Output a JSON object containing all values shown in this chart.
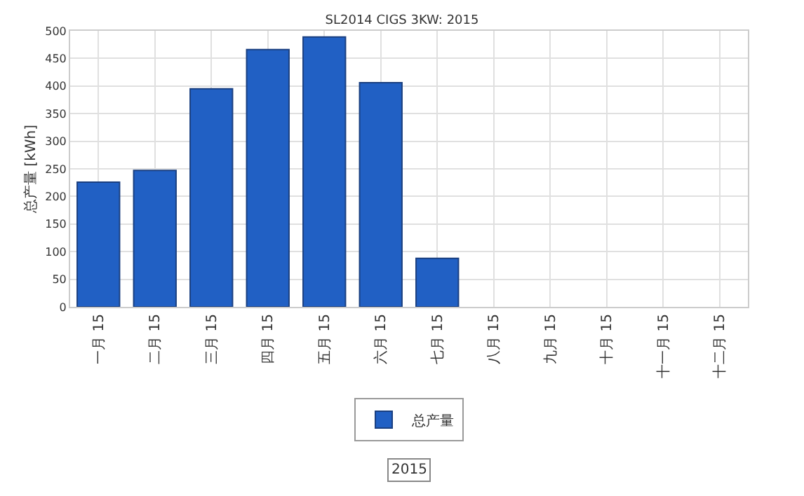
{
  "chart_data": {
    "type": "bar",
    "title": "SL2014 CIGS 3KW: 2015",
    "ylabel": "总产量 [kWh]",
    "categories": [
      "一月 15",
      "二月 15",
      "三月 15",
      "四月 15",
      "五月 15",
      "六月 15",
      "七月 15",
      "八月 15",
      "九月 15",
      "十月 15",
      "十一月 15",
      "十二月 15"
    ],
    "series": [
      {
        "name": "总产量",
        "color": "#2160c4",
        "values": [
          226,
          247,
          395,
          466,
          489,
          406,
          88,
          null,
          null,
          null,
          null,
          null
        ]
      }
    ],
    "ylim": [
      0,
      500
    ],
    "yticks": [
      0,
      50,
      100,
      150,
      200,
      250,
      300,
      350,
      400,
      450,
      500
    ],
    "grid": true,
    "legend": "bottom",
    "annotations": [
      "2015"
    ]
  }
}
